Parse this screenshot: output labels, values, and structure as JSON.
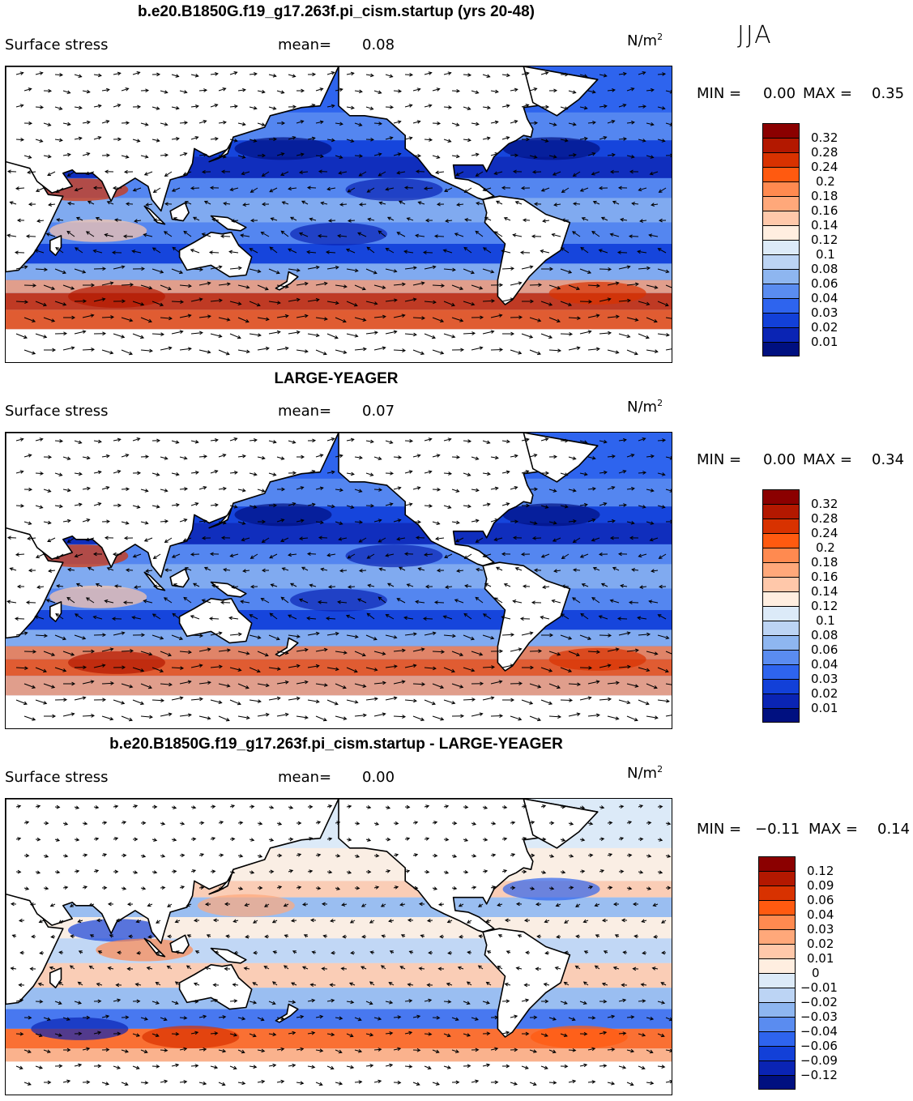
{
  "season": "JJA",
  "units_base": "N/m",
  "units_exp": "2",
  "panels": [
    {
      "title": "b.e20.B1850G.f19_g17.263f.pi_cism.startup (yrs 20-48)",
      "variable": "Surface stress",
      "mean_label": "mean=",
      "mean_value": "0.08",
      "min_label": "MIN =",
      "min_value": "0.00",
      "max_label": "MAX =",
      "max_value": "0.35",
      "colorbar_ticks": [
        "0.32",
        "0.28",
        "0.24",
        "0.2",
        "0.18",
        "0.16",
        "0.14",
        "0.12",
        "0.1",
        "0.08",
        "0.06",
        "0.04",
        "0.03",
        "0.02",
        "0.01"
      ],
      "colorbar_colors": [
        "#8b0000",
        "#b31800",
        "#d83200",
        "#ff5a10",
        "#ff8a50",
        "#ffa87a",
        "#ffc8aa",
        "#ffeee0",
        "#dceaf8",
        "#bcd4f4",
        "#8eb6f0",
        "#5a8cf0",
        "#2e64ee",
        "#1240d8",
        "#0a24b4",
        "#001080"
      ]
    },
    {
      "title": "LARGE-YEAGER",
      "variable": "Surface stress",
      "mean_label": "mean=",
      "mean_value": "0.07",
      "min_label": "MIN =",
      "min_value": "0.00",
      "max_label": "MAX =",
      "max_value": "0.34",
      "colorbar_ticks": [
        "0.32",
        "0.28",
        "0.24",
        "0.2",
        "0.18",
        "0.16",
        "0.14",
        "0.12",
        "0.1",
        "0.08",
        "0.06",
        "0.04",
        "0.03",
        "0.02",
        "0.01"
      ],
      "colorbar_colors": [
        "#8b0000",
        "#b31800",
        "#d83200",
        "#ff5a10",
        "#ff8a50",
        "#ffa87a",
        "#ffc8aa",
        "#ffeee0",
        "#dceaf8",
        "#bcd4f4",
        "#8eb6f0",
        "#5a8cf0",
        "#2e64ee",
        "#1240d8",
        "#0a24b4",
        "#001080"
      ]
    },
    {
      "title": "b.e20.B1850G.f19_g17.263f.pi_cism.startup - LARGE-YEAGER",
      "variable": "Surface stress",
      "mean_label": "mean=",
      "mean_value": "0.00",
      "min_label": "MIN =",
      "min_value": "−0.11",
      "max_label": "MAX =",
      "max_value": "0.14",
      "colorbar_ticks": [
        "0.12",
        "0.09",
        "0.06",
        "0.04",
        "0.03",
        "0.02",
        "0.01",
        "0",
        "−0.01",
        "−0.02",
        "−0.03",
        "−0.04",
        "−0.06",
        "−0.09",
        "−0.12"
      ],
      "colorbar_colors": [
        "#8b0000",
        "#b31800",
        "#d83200",
        "#ff5a10",
        "#ff8a50",
        "#ffa87a",
        "#ffc8aa",
        "#ffeee0",
        "#dceaf8",
        "#bcd4f4",
        "#8eb6f0",
        "#5a8cf0",
        "#2e64ee",
        "#1240d8",
        "#0a24b4",
        "#001080"
      ]
    }
  ],
  "chart_data": [
    {
      "type": "heatmap",
      "title": "b.e20.B1850G.f19_g17.263f.pi_cism.startup (yrs 20-48)",
      "variable": "Surface stress",
      "units": "N/m2",
      "season": "JJA",
      "mean": 0.08,
      "min": 0.0,
      "max": 0.35,
      "contour_levels": [
        0.01,
        0.02,
        0.03,
        0.04,
        0.06,
        0.08,
        0.1,
        0.12,
        0.14,
        0.16,
        0.18,
        0.2,
        0.24,
        0.28,
        0.32
      ]
    },
    {
      "type": "heatmap",
      "title": "LARGE-YEAGER",
      "variable": "Surface stress",
      "units": "N/m2",
      "season": "JJA",
      "mean": 0.07,
      "min": 0.0,
      "max": 0.34,
      "contour_levels": [
        0.01,
        0.02,
        0.03,
        0.04,
        0.06,
        0.08,
        0.1,
        0.12,
        0.14,
        0.16,
        0.18,
        0.2,
        0.24,
        0.28,
        0.32
      ]
    },
    {
      "type": "heatmap",
      "title": "b.e20.B1850G.f19_g17.263f.pi_cism.startup - LARGE-YEAGER",
      "variable": "Surface stress",
      "units": "N/m2",
      "season": "JJA",
      "mean": 0.0,
      "min": -0.11,
      "max": 0.14,
      "contour_levels": [
        -0.12,
        -0.09,
        -0.06,
        -0.04,
        -0.03,
        -0.02,
        -0.01,
        0,
        0.01,
        0.02,
        0.03,
        0.04,
        0.06,
        0.09,
        0.12
      ]
    }
  ]
}
